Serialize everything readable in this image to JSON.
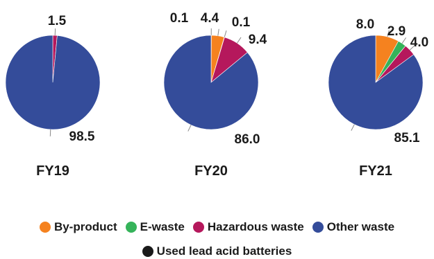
{
  "chart_data": {
    "type": "pie",
    "categories": [
      "By-product",
      "E-waste",
      "Hazardous waste",
      "Other waste",
      "Used lead acid batteries"
    ],
    "colors": {
      "By-product": "#f5821f",
      "E-waste": "#35b35a",
      "Hazardous waste": "#b5185c",
      "Other waste": "#344c9a",
      "Used lead acid batteries": "#1a1a1a"
    },
    "legend_placement": "bottom",
    "charts": [
      {
        "title": "FY19",
        "slices": [
          {
            "category": "Hazardous waste",
            "value": 1.5,
            "label": "1.5"
          },
          {
            "category": "Other waste",
            "value": 98.5,
            "label": "98.5"
          }
        ]
      },
      {
        "title": "FY20",
        "slices": [
          {
            "category": "Used lead acid batteries",
            "value": 0.1,
            "label": "0.1"
          },
          {
            "category": "By-product",
            "value": 4.4,
            "label": "4.4"
          },
          {
            "category": "E-waste",
            "value": 0.1,
            "label": "0.1"
          },
          {
            "category": "Hazardous waste",
            "value": 9.4,
            "label": "9.4"
          },
          {
            "category": "Other waste",
            "value": 86.0,
            "label": "86.0"
          }
        ]
      },
      {
        "title": "FY21",
        "slices": [
          {
            "category": "By-product",
            "value": 8.0,
            "label": "8.0"
          },
          {
            "category": "E-waste",
            "value": 2.9,
            "label": "2.9"
          },
          {
            "category": "Hazardous waste",
            "value": 4.0,
            "label": "4.0"
          },
          {
            "category": "Other waste",
            "value": 85.1,
            "label": "85.1"
          }
        ]
      }
    ]
  }
}
